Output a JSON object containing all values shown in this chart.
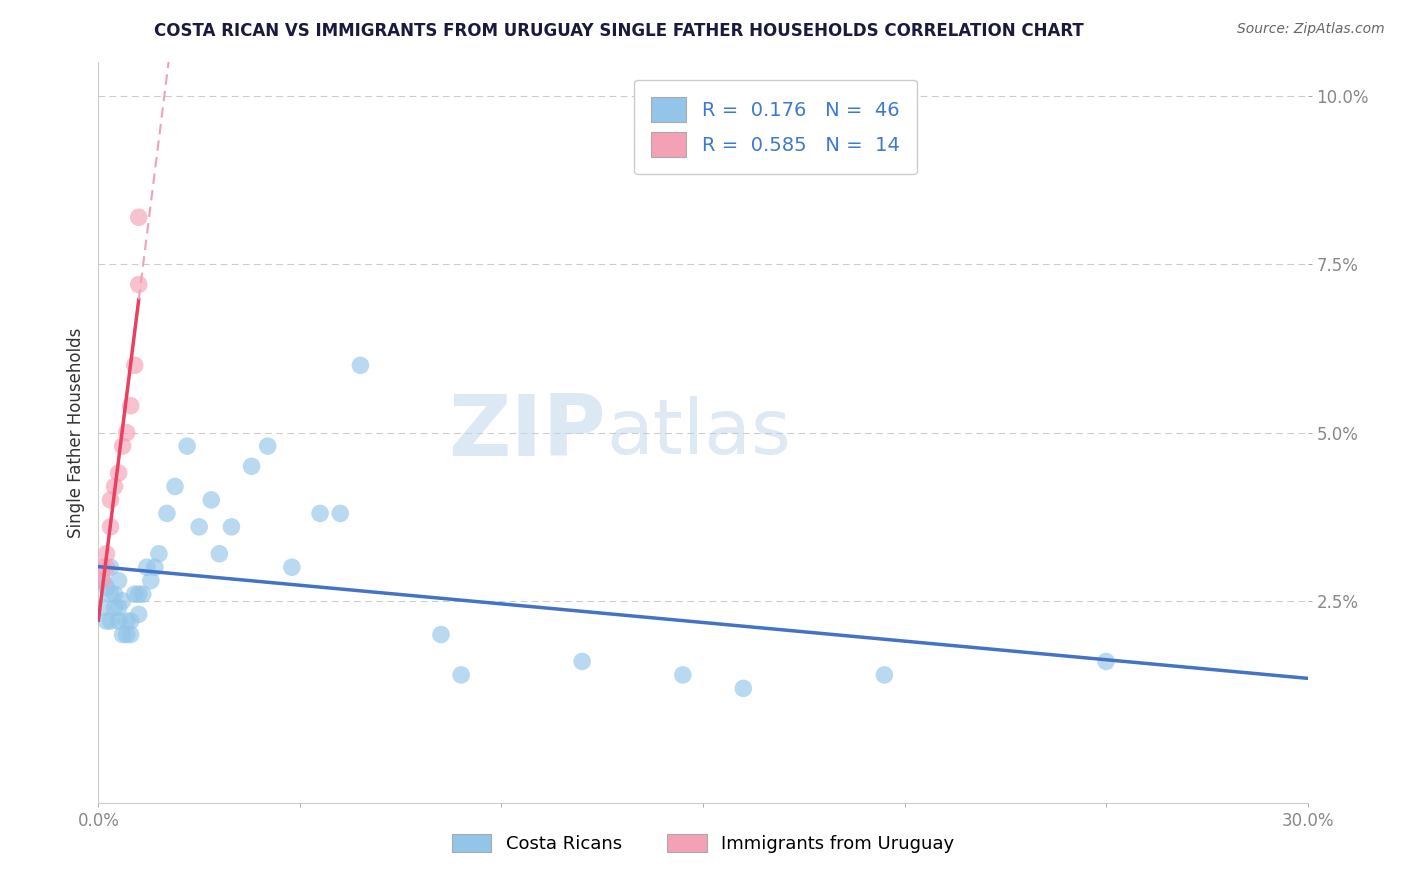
{
  "title": "COSTA RICAN VS IMMIGRANTS FROM URUGUAY SINGLE FATHER HOUSEHOLDS CORRELATION CHART",
  "source": "Source: ZipAtlas.com",
  "ylabel": "Single Father Households",
  "xlim": [
    0.0,
    0.3
  ],
  "ylim": [
    -0.005,
    0.105
  ],
  "blue_color": "#92C5E8",
  "pink_color": "#F4A0B5",
  "blue_line_color": "#4472C4",
  "pink_line_color": "#E84060",
  "pink_dash_color": "#F0A0B8",
  "dashed_line_color": "#CCCCCC",
  "r_blue": 0.176,
  "n_blue": 46,
  "r_pink": 0.585,
  "n_pink": 14,
  "watermark_zip": "ZIP",
  "watermark_atlas": "atlas",
  "legend_labels": [
    "Costa Ricans",
    "Immigrants from Uruguay"
  ],
  "cr_x": [
    0.001,
    0.001,
    0.002,
    0.002,
    0.003,
    0.003,
    0.003,
    0.004,
    0.004,
    0.005,
    0.005,
    0.005,
    0.006,
    0.006,
    0.007,
    0.007,
    0.008,
    0.008,
    0.009,
    0.01,
    0.01,
    0.011,
    0.012,
    0.013,
    0.014,
    0.015,
    0.017,
    0.019,
    0.022,
    0.025,
    0.028,
    0.03,
    0.033,
    0.038,
    0.042,
    0.048,
    0.055,
    0.06,
    0.065,
    0.085,
    0.09,
    0.12,
    0.145,
    0.16,
    0.195,
    0.25
  ],
  "cr_y": [
    0.028,
    0.024,
    0.027,
    0.022,
    0.03,
    0.026,
    0.022,
    0.024,
    0.026,
    0.028,
    0.024,
    0.022,
    0.025,
    0.02,
    0.022,
    0.02,
    0.022,
    0.02,
    0.026,
    0.023,
    0.026,
    0.026,
    0.03,
    0.028,
    0.03,
    0.032,
    0.038,
    0.042,
    0.048,
    0.036,
    0.04,
    0.032,
    0.036,
    0.045,
    0.048,
    0.03,
    0.038,
    0.038,
    0.06,
    0.02,
    0.014,
    0.016,
    0.014,
    0.012,
    0.014,
    0.016
  ],
  "ur_x": [
    0.001,
    0.001,
    0.002,
    0.002,
    0.003,
    0.003,
    0.004,
    0.005,
    0.006,
    0.007,
    0.008,
    0.009,
    0.01,
    0.01
  ],
  "ur_y": [
    0.028,
    0.03,
    0.032,
    0.03,
    0.036,
    0.04,
    0.042,
    0.044,
    0.048,
    0.05,
    0.054,
    0.06,
    0.072,
    0.082
  ]
}
